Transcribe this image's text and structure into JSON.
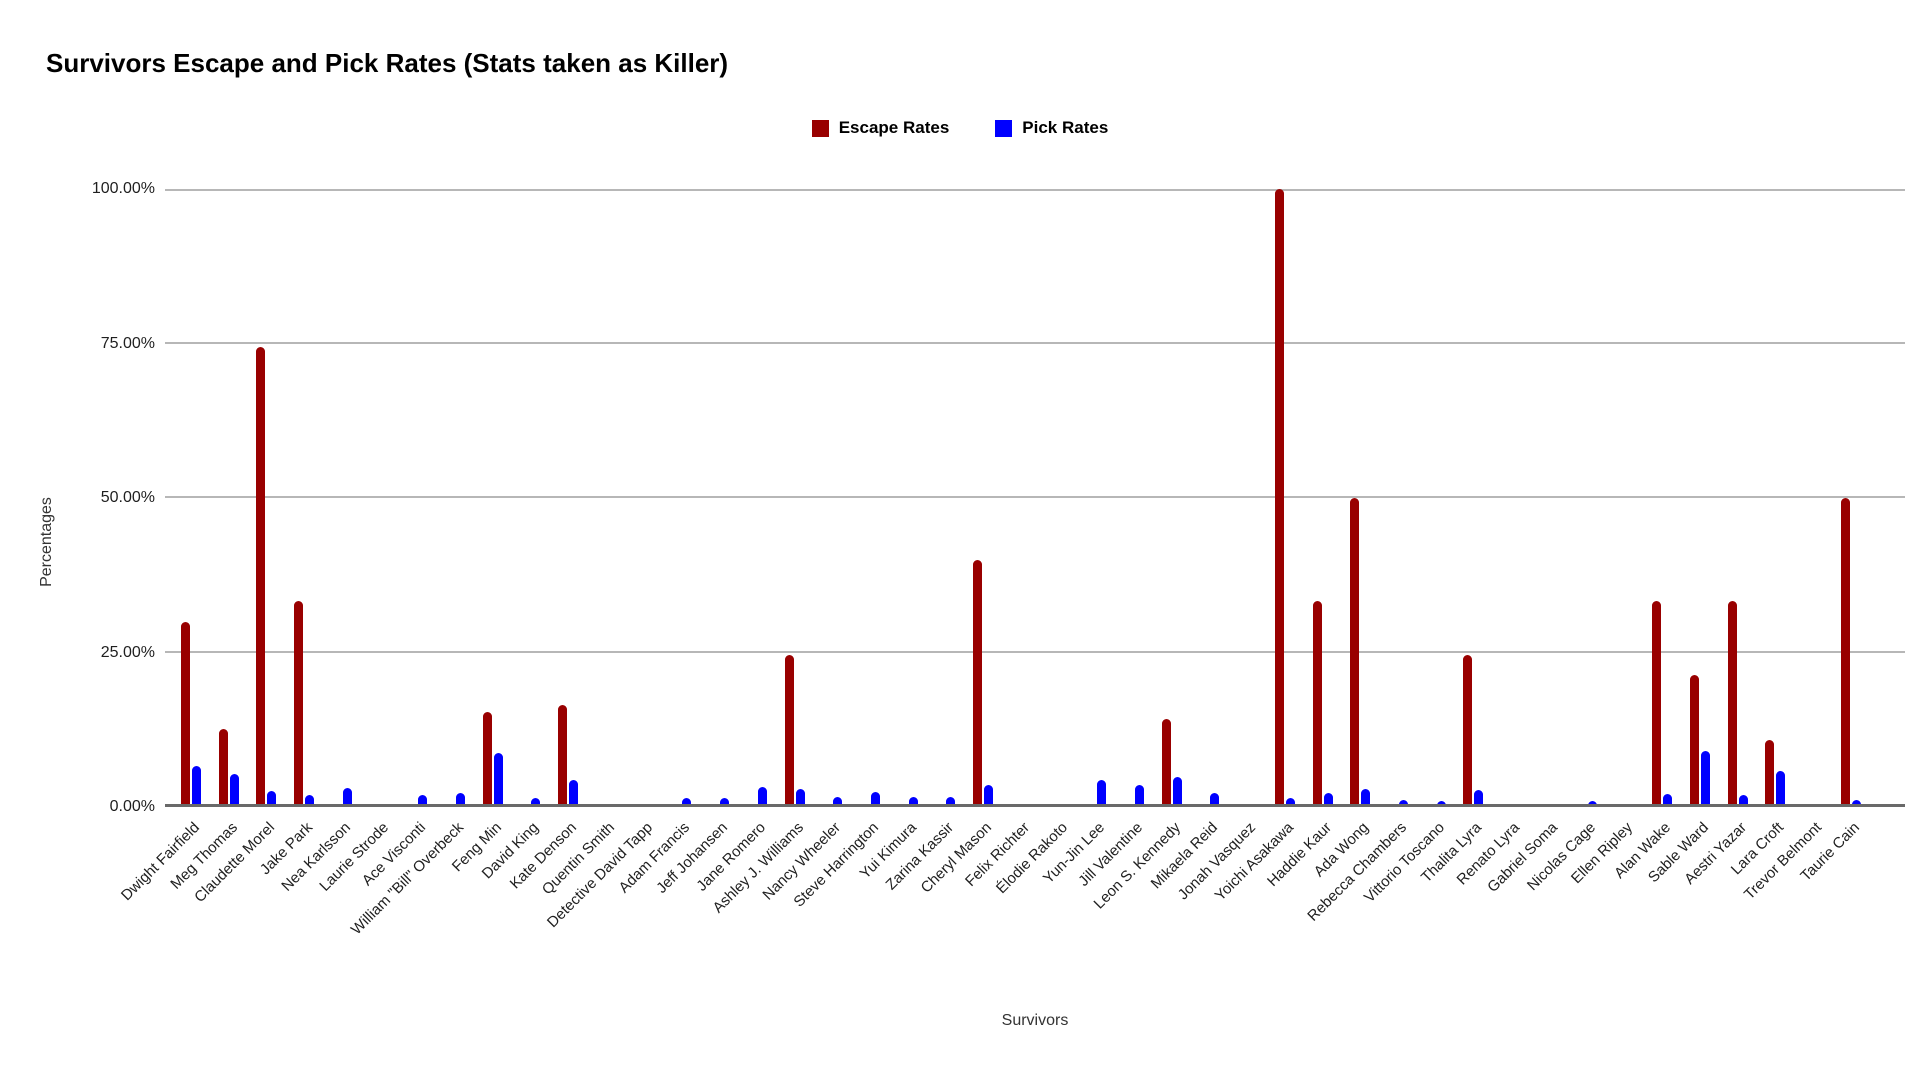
{
  "chart_data": {
    "type": "bar",
    "title": "Survivors Escape and Pick Rates (Stats taken as Killer)",
    "xlabel": "Survivors",
    "ylabel": "Percentages",
    "ylim": [
      0,
      100
    ],
    "grid": true,
    "legend_position": "top-center",
    "y_ticks": [
      "0.00%",
      "25.00%",
      "50.00%",
      "75.00%",
      "100.00%"
    ],
    "categories": [
      "Dwight Fairfield",
      "Meg Thomas",
      "Claudette Morel",
      "Jake Park",
      "Nea Karlsson",
      "Laurie Strode",
      "Ace Visconti",
      "William \"Bill\" Overbeck",
      "Feng Min",
      "David King",
      "Kate Denson",
      "Quentin Smith",
      "Detective David Tapp",
      "Adam Francis",
      "Jeff Johansen",
      "Jane Romero",
      "Ashley J. Williams",
      "Nancy Wheeler",
      "Steve Harrington",
      "Yui Kimura",
      "Zarina Kassir",
      "Cheryl Mason",
      "Felix Richter",
      "Élodie Rakoto",
      "Yun-Jin Lee",
      "Jill Valentine",
      "Leon S. Kennedy",
      "Mikaela Reid",
      "Jonah Vasquez",
      "Yoichi Asakawa",
      "Haddie Kaur",
      "Ada Wong",
      "Rebecca Chambers",
      "Vittorio Toscano",
      "Thalita Lyra",
      "Renato Lyra",
      "Gabriel Soma",
      "Nicolas Cage",
      "Ellen Ripley",
      "Alan Wake",
      "Sable Ward",
      "Aestri Yazar",
      "Lara Croft",
      "Trevor Belmont",
      "Taurie Cain"
    ],
    "series": [
      {
        "name": "Escape Rates",
        "color": "#990000",
        "values": [
          30,
          12.7,
          74.5,
          33.3,
          0,
          0,
          0,
          0,
          15.4,
          0,
          16.5,
          0,
          0,
          0,
          0,
          0,
          24.6,
          0,
          0,
          0,
          0,
          40,
          0,
          0,
          0,
          0,
          14.2,
          0,
          0,
          100,
          33.3,
          50,
          0,
          0,
          24.6,
          0,
          0,
          0,
          0,
          33.3,
          21.3,
          33.3,
          10.9,
          0,
          50
        ]
      },
      {
        "name": "Pick Rates",
        "color": "#0000ff",
        "values": [
          6.7,
          5.3,
          2.6,
          2.0,
          3.1,
          0,
          2.0,
          2.2,
          8.8,
          1.5,
          4.3,
          0,
          0,
          1.5,
          1.5,
          3.3,
          2.9,
          1.7,
          2.4,
          1.6,
          1.6,
          3.5,
          0,
          0,
          4.3,
          3.5,
          4.8,
          2.2,
          0,
          1.4,
          2.2,
          2.9,
          1.2,
          0.9,
          2.8,
          0,
          0,
          0.9,
          0,
          2.1,
          9.0,
          2.0,
          5.9,
          0,
          1.2
        ]
      }
    ]
  }
}
